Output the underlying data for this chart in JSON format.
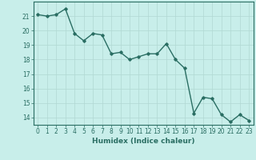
{
  "x": [
    0,
    1,
    2,
    3,
    4,
    5,
    6,
    7,
    8,
    9,
    10,
    11,
    12,
    13,
    14,
    15,
    16,
    17,
    18,
    19,
    20,
    21,
    22,
    23
  ],
  "y": [
    21.1,
    21.0,
    21.1,
    21.5,
    19.8,
    19.3,
    19.8,
    19.7,
    18.4,
    18.5,
    18.0,
    18.2,
    18.4,
    18.4,
    19.1,
    18.0,
    17.4,
    14.3,
    15.4,
    15.3,
    14.2,
    13.7,
    14.2,
    13.8
  ],
  "line_color": "#2a6e63",
  "marker": "D",
  "marker_size": 1.8,
  "bg_color": "#c8eeea",
  "grid_color": "#b0d8d3",
  "axis_color": "#2a6e63",
  "xlabel": "Humidex (Indice chaleur)",
  "xlim": [
    -0.5,
    23.5
  ],
  "ylim": [
    13.5,
    22.0
  ],
  "yticks": [
    14,
    15,
    16,
    17,
    18,
    19,
    20,
    21
  ],
  "xticks": [
    0,
    1,
    2,
    3,
    4,
    5,
    6,
    7,
    8,
    9,
    10,
    11,
    12,
    13,
    14,
    15,
    16,
    17,
    18,
    19,
    20,
    21,
    22,
    23
  ],
  "xlabel_fontsize": 6.5,
  "tick_fontsize": 5.5,
  "line_width": 1.0
}
